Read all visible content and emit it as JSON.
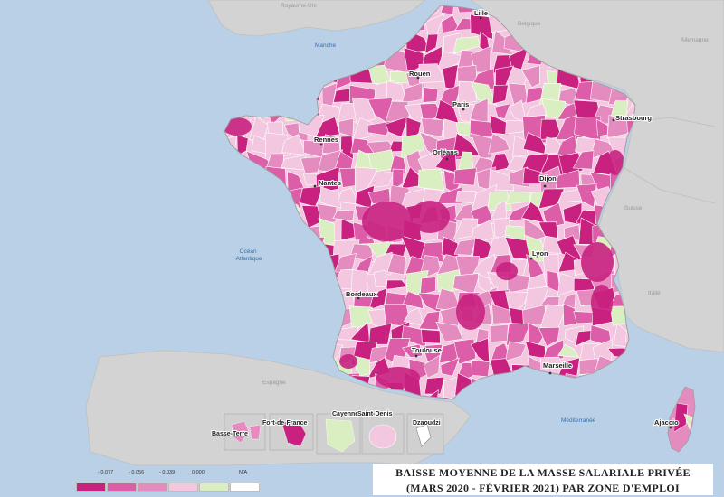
{
  "title": {
    "line1": "BAISSE MOYENNE DE LA MASSE SALARIALE PRIVÉE",
    "line2": "(MARS 2020 - FÉVRIER 2021) PAR ZONE D'EMPLOI"
  },
  "legend": {
    "ticks": [
      "- 0,077",
      "- 0,056",
      "- 0,039",
      "0,000",
      "N/A"
    ],
    "classes": [
      {
        "color": "#c8217f"
      },
      {
        "color": "#dc5da8"
      },
      {
        "color": "#e48cc0"
      },
      {
        "color": "#f2c7df"
      },
      {
        "color": "#d9efc2"
      },
      {
        "color": "#ffffff"
      }
    ]
  },
  "cities": [
    {
      "name": "Lille"
    },
    {
      "name": "Rouen"
    },
    {
      "name": "Paris"
    },
    {
      "name": "Strasbourg"
    },
    {
      "name": "Rennes"
    },
    {
      "name": "Orléans"
    },
    {
      "name": "Nantes"
    },
    {
      "name": "Dijon"
    },
    {
      "name": "Lyon"
    },
    {
      "name": "Bordeaux"
    },
    {
      "name": "Toulouse"
    },
    {
      "name": "Marseille"
    },
    {
      "name": "Ajaccio"
    }
  ],
  "seas": [
    "Manche",
    "Océan Atlantique",
    "Méditerranée"
  ],
  "countries": [
    "Royaume-Uni",
    "Belgique",
    "Allemagne",
    "Suisse",
    "Italie",
    "Espagne"
  ],
  "overseas": [
    "Basse-Terre",
    "Fort-de-France",
    "Cayenne",
    "Saint-Denis",
    "Dzaoudzi"
  ]
}
